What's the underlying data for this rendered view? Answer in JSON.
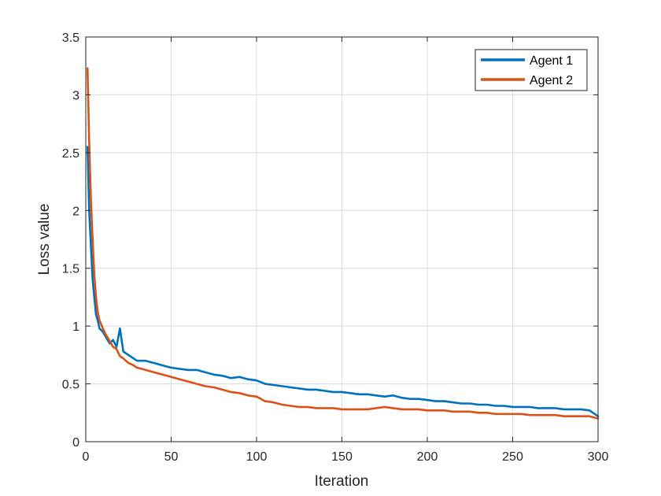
{
  "chart_data": {
    "type": "line",
    "title": "",
    "xlabel": "Iteration",
    "ylabel": "Loss value",
    "xlim": [
      0,
      300
    ],
    "ylim": [
      0,
      3.5
    ],
    "xticks": [
      0,
      50,
      100,
      150,
      200,
      250,
      300
    ],
    "yticks": [
      0,
      0.5,
      1,
      1.5,
      2,
      2.5,
      3,
      3.5
    ],
    "xtick_labels": [
      "0",
      "50",
      "100",
      "150",
      "200",
      "250",
      "300"
    ],
    "ytick_labels": [
      "0",
      "0.5",
      "1",
      "1.5",
      "2",
      "2.5",
      "3",
      "3.5"
    ],
    "grid": true,
    "legend_position": "top-right",
    "series": [
      {
        "name": "Agent 1",
        "color": "#0072BD",
        "x": [
          1,
          2,
          3,
          4,
          5,
          6,
          7,
          8,
          10,
          12,
          14,
          16,
          18,
          20,
          22,
          25,
          28,
          30,
          35,
          40,
          45,
          50,
          55,
          60,
          65,
          70,
          75,
          80,
          85,
          90,
          95,
          100,
          105,
          110,
          115,
          120,
          125,
          130,
          135,
          140,
          145,
          150,
          155,
          160,
          165,
          170,
          175,
          180,
          185,
          190,
          195,
          200,
          205,
          210,
          215,
          220,
          225,
          230,
          235,
          240,
          245,
          250,
          255,
          260,
          265,
          270,
          275,
          280,
          285,
          290,
          295,
          300
        ],
        "y": [
          2.55,
          2.0,
          1.7,
          1.4,
          1.25,
          1.1,
          1.05,
          0.98,
          0.95,
          0.9,
          0.85,
          0.88,
          0.82,
          0.98,
          0.78,
          0.75,
          0.72,
          0.7,
          0.7,
          0.68,
          0.66,
          0.64,
          0.63,
          0.62,
          0.62,
          0.6,
          0.58,
          0.57,
          0.55,
          0.56,
          0.54,
          0.53,
          0.5,
          0.49,
          0.48,
          0.47,
          0.46,
          0.45,
          0.45,
          0.44,
          0.43,
          0.43,
          0.42,
          0.41,
          0.41,
          0.4,
          0.39,
          0.4,
          0.38,
          0.37,
          0.37,
          0.36,
          0.35,
          0.35,
          0.34,
          0.33,
          0.33,
          0.32,
          0.32,
          0.31,
          0.31,
          0.3,
          0.3,
          0.3,
          0.29,
          0.29,
          0.29,
          0.28,
          0.28,
          0.28,
          0.27,
          0.22
        ]
      },
      {
        "name": "Agent 2",
        "color": "#D95319",
        "x": [
          1,
          2,
          3,
          4,
          5,
          6,
          7,
          8,
          10,
          12,
          14,
          16,
          18,
          20,
          22,
          25,
          28,
          30,
          35,
          40,
          45,
          50,
          55,
          60,
          65,
          70,
          75,
          80,
          85,
          90,
          95,
          100,
          105,
          110,
          115,
          120,
          125,
          130,
          135,
          140,
          145,
          150,
          155,
          160,
          165,
          170,
          175,
          180,
          185,
          190,
          195,
          200,
          205,
          210,
          215,
          220,
          225,
          230,
          235,
          240,
          245,
          250,
          255,
          260,
          265,
          270,
          275,
          280,
          285,
          290,
          295,
          300
        ],
        "y": [
          3.23,
          2.6,
          2.1,
          1.75,
          1.45,
          1.25,
          1.12,
          1.05,
          0.98,
          0.92,
          0.87,
          0.82,
          0.8,
          0.74,
          0.72,
          0.68,
          0.66,
          0.64,
          0.62,
          0.6,
          0.58,
          0.56,
          0.54,
          0.52,
          0.5,
          0.48,
          0.47,
          0.45,
          0.43,
          0.42,
          0.4,
          0.39,
          0.35,
          0.34,
          0.32,
          0.31,
          0.3,
          0.3,
          0.29,
          0.29,
          0.29,
          0.28,
          0.28,
          0.28,
          0.28,
          0.29,
          0.3,
          0.29,
          0.28,
          0.28,
          0.28,
          0.27,
          0.27,
          0.27,
          0.26,
          0.26,
          0.26,
          0.25,
          0.25,
          0.24,
          0.24,
          0.24,
          0.24,
          0.23,
          0.23,
          0.23,
          0.23,
          0.22,
          0.22,
          0.22,
          0.22,
          0.2
        ]
      }
    ]
  }
}
